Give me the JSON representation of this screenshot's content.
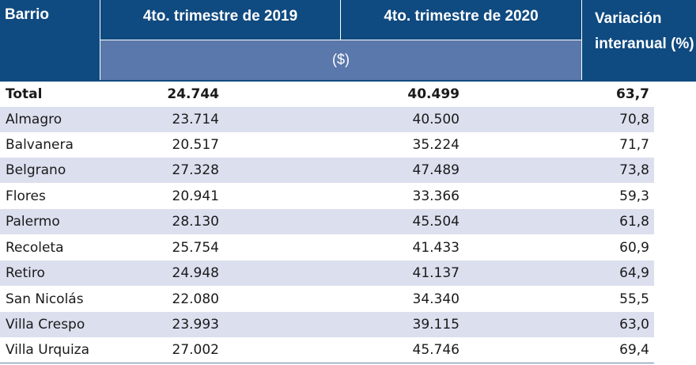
{
  "header": {
    "barrio": "Barrio",
    "col_2019": "4to. trimestre de 2019",
    "col_2020": "4to. trimestre de 2020",
    "variacion_line1": "Variación",
    "variacion_line2": "interanual (%)",
    "unit": "($)"
  },
  "total": {
    "name": "Total",
    "v2019": "24.744",
    "v2020": "40.499",
    "var": "63,7"
  },
  "rows": [
    {
      "name": "Almagro",
      "v2019": "23.714",
      "v2020": "40.500",
      "var": "70,8"
    },
    {
      "name": "Balvanera",
      "v2019": "20.517",
      "v2020": "35.224",
      "var": "71,7"
    },
    {
      "name": "Belgrano",
      "v2019": "27.328",
      "v2020": "47.489",
      "var": "73,8"
    },
    {
      "name": "Flores",
      "v2019": "20.941",
      "v2020": "33.366",
      "var": "59,3"
    },
    {
      "name": "Palermo",
      "v2019": "28.130",
      "v2020": "45.504",
      "var": "61,8"
    },
    {
      "name": "Recoleta",
      "v2019": "25.754",
      "v2020": "41.433",
      "var": "60,9"
    },
    {
      "name": "Retiro",
      "v2019": "24.948",
      "v2020": "41.137",
      "var": "64,9"
    },
    {
      "name": "San Nicolás",
      "v2019": "22.080",
      "v2020": "34.340",
      "var": "55,5"
    },
    {
      "name": "Villa Crespo",
      "v2019": "23.993",
      "v2020": "39.115",
      "var": "63,0"
    },
    {
      "name": "Villa Urquiza",
      "v2019": "27.002",
      "v2020": "45.746",
      "var": "69,4"
    }
  ],
  "colors": {
    "header_dark": "#0f4a80",
    "header_light": "#5a78ab",
    "row_alt": "#dcdfee"
  }
}
